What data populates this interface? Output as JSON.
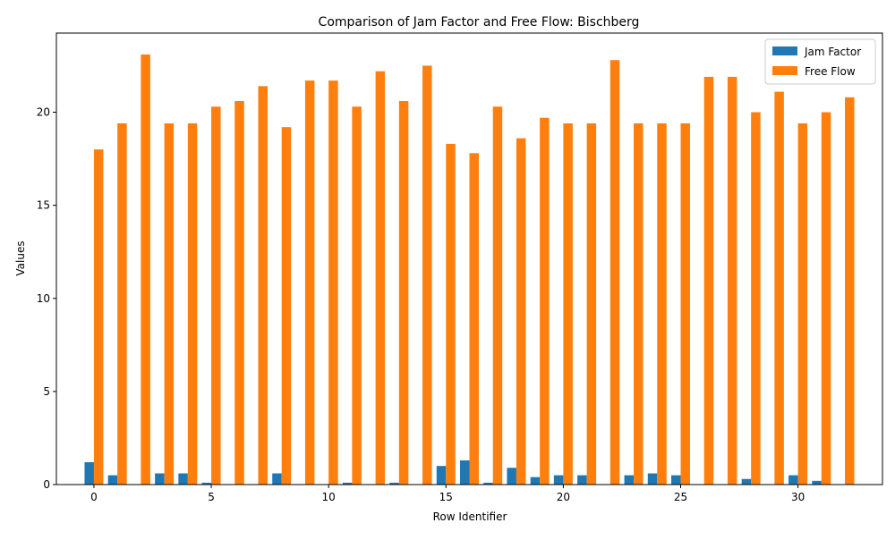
{
  "chart_data": {
    "type": "bar",
    "title": "Comparison of Jam Factor and Free Flow: Bischberg",
    "xlabel": "Row Identifier",
    "ylabel": "Values",
    "x": [
      0,
      1,
      2,
      3,
      4,
      5,
      6,
      7,
      8,
      9,
      10,
      11,
      12,
      13,
      14,
      15,
      16,
      17,
      18,
      19,
      20,
      21,
      22,
      23,
      24,
      25,
      26,
      27,
      28,
      29,
      30,
      31,
      32
    ],
    "xticks": [
      0,
      5,
      10,
      15,
      20,
      25,
      30
    ],
    "yticks": [
      0,
      5,
      10,
      15,
      20
    ],
    "xlim": [
      -1.6,
      33.6
    ],
    "ylim": [
      0,
      24.25
    ],
    "legend_position": "top-right",
    "grid": false,
    "series": [
      {
        "name": "Jam Factor",
        "color": "#1f77b4",
        "values": [
          1.2,
          0.5,
          0.0,
          0.6,
          0.6,
          0.1,
          0.0,
          0.0,
          0.6,
          0.0,
          0.0,
          0.1,
          0.0,
          0.1,
          0.0,
          1.0,
          1.3,
          0.1,
          0.9,
          0.4,
          0.5,
          0.5,
          0.0,
          0.5,
          0.6,
          0.5,
          0.0,
          0.0,
          0.3,
          0.0,
          0.5,
          0.2,
          0.0
        ]
      },
      {
        "name": "Free Flow",
        "color": "#ff7f0e",
        "values": [
          18.0,
          19.4,
          23.1,
          19.4,
          19.4,
          20.3,
          20.6,
          21.4,
          19.2,
          21.7,
          21.7,
          20.3,
          22.2,
          20.6,
          22.5,
          18.3,
          17.8,
          20.3,
          18.6,
          19.7,
          19.4,
          19.4,
          22.8,
          19.4,
          19.4,
          19.4,
          21.9,
          21.9,
          20.0,
          21.1,
          19.4,
          20.0,
          20.8
        ]
      }
    ]
  }
}
